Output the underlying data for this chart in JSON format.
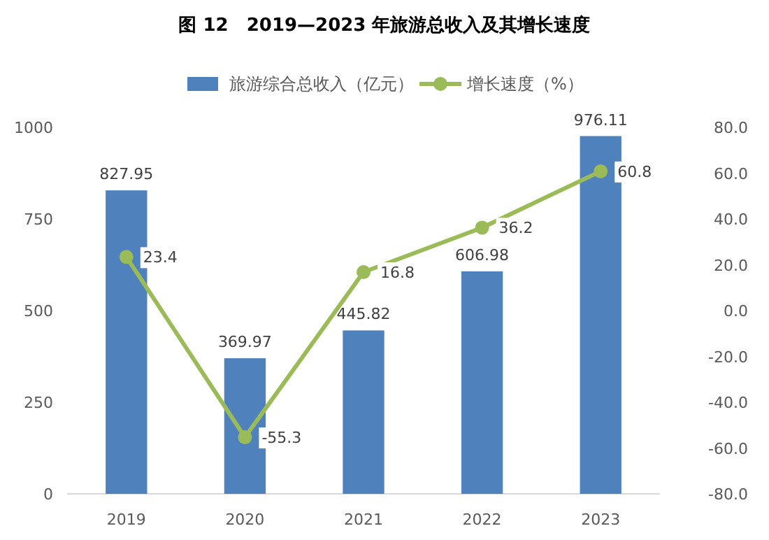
{
  "chart_data": {
    "type": "bar",
    "title": "图 12　2019—2023 年旅游总收入及其增长速度",
    "categories": [
      "2019",
      "2020",
      "2021",
      "2022",
      "2023"
    ],
    "series": [
      {
        "name": "旅游综合总收入（亿元）",
        "color": "#4f81bd",
        "values": [
          827.95,
          369.97,
          445.82,
          606.98,
          976.11
        ]
      },
      {
        "name": "增长速度（%）",
        "type": "line",
        "axis": "y2",
        "color": "#9bbb59",
        "marker": "circle",
        "values": [
          23.4,
          -55.3,
          16.8,
          36.2,
          60.8
        ]
      }
    ],
    "ylim": [
      0,
      1000
    ],
    "yticks": [
      0,
      250,
      500,
      750,
      1000
    ],
    "y2lim": [
      -80,
      80
    ],
    "y2ticks": [
      {
        "value": -80,
        "label": "-80.0"
      },
      {
        "value": -60,
        "label": "-60.0"
      },
      {
        "value": -40,
        "label": "-40.0"
      },
      {
        "value": -20,
        "label": "-20.0"
      },
      {
        "value": 0,
        "label": "0.0"
      },
      {
        "value": 20,
        "label": "20.0"
      },
      {
        "value": 40,
        "label": "40.0"
      },
      {
        "value": 60,
        "label": "60.0"
      },
      {
        "value": 80,
        "label": "80.0"
      }
    ],
    "data_labels": true,
    "legend": "top"
  }
}
